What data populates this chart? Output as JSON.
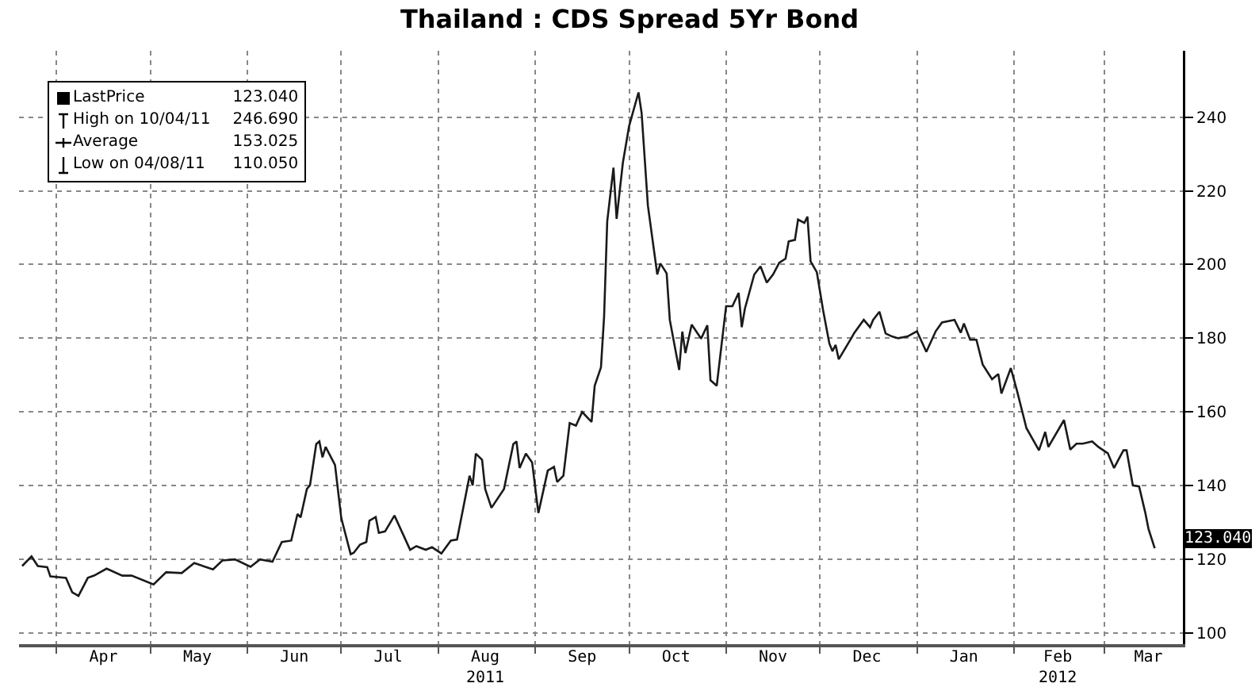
{
  "chart_data": {
    "type": "line",
    "title": "Thailand : CDS Spread 5Yr Bond",
    "x": [
      "2011-03-21",
      "2011-03-24",
      "2011-03-26",
      "2011-03-29",
      "2011-03-30",
      "2011-04-04",
      "2011-04-06",
      "2011-04-08",
      "2011-04-11",
      "2011-04-13",
      "2011-04-17",
      "2011-04-22",
      "2011-04-25",
      "2011-05-02",
      "2011-05-06",
      "2011-05-11",
      "2011-05-15",
      "2011-05-21",
      "2011-05-24",
      "2011-05-28",
      "2011-06-02",
      "2011-06-05",
      "2011-06-09",
      "2011-06-12",
      "2011-06-15",
      "2011-06-17",
      "2011-06-18",
      "2011-06-20",
      "2011-06-21",
      "2011-06-23",
      "2011-06-24",
      "2011-06-25",
      "2011-06-26",
      "2011-06-29",
      "2011-07-01",
      "2011-07-04",
      "2011-07-05",
      "2011-07-07",
      "2011-07-09",
      "2011-07-10",
      "2011-07-12",
      "2011-07-13",
      "2011-07-15",
      "2011-07-18",
      "2011-07-23",
      "2011-07-25",
      "2011-07-28",
      "2011-07-30",
      "2011-08-02",
      "2011-08-05",
      "2011-08-07",
      "2011-08-09",
      "2011-08-11",
      "2011-08-12",
      "2011-08-13",
      "2011-08-15",
      "2011-08-16",
      "2011-08-18",
      "2011-08-22",
      "2011-08-25",
      "2011-08-26",
      "2011-08-27",
      "2011-08-29",
      "2011-08-31",
      "2011-09-02",
      "2011-09-05",
      "2011-09-07",
      "2011-09-08",
      "2011-09-10",
      "2011-09-12",
      "2011-09-14",
      "2011-09-16",
      "2011-09-19",
      "2011-09-20",
      "2011-09-22",
      "2011-09-23",
      "2011-09-24",
      "2011-09-26",
      "2011-09-27",
      "2011-09-29",
      "2011-10-01",
      "2011-10-04",
      "2011-10-05",
      "2011-10-07",
      "2011-10-10",
      "2011-10-11",
      "2011-10-13",
      "2011-10-14",
      "2011-10-17",
      "2011-10-18",
      "2011-10-19",
      "2011-10-21",
      "2011-10-24",
      "2011-10-26",
      "2011-10-27",
      "2011-10-29",
      "2011-11-01",
      "2011-11-03",
      "2011-11-05",
      "2011-11-06",
      "2011-11-07",
      "2011-11-10",
      "2011-11-12",
      "2011-11-14",
      "2011-11-16",
      "2011-11-18",
      "2011-11-20",
      "2011-11-21",
      "2011-11-23",
      "2011-11-24",
      "2011-11-26",
      "2011-11-27",
      "2011-11-28",
      "2011-11-30",
      "2011-12-02",
      "2011-12-04",
      "2011-12-05",
      "2011-12-06",
      "2011-12-07",
      "2011-12-11",
      "2011-12-12",
      "2011-12-15",
      "2011-12-17",
      "2011-12-18",
      "2011-12-20",
      "2011-12-22",
      "2011-12-24",
      "2011-12-26",
      "2011-12-29",
      "2012-01-01",
      "2012-01-04",
      "2012-01-07",
      "2012-01-09",
      "2012-01-13",
      "2012-01-15",
      "2012-01-16",
      "2012-01-18",
      "2012-01-20",
      "2012-01-22",
      "2012-01-25",
      "2012-01-27",
      "2012-01-28",
      "2012-01-31",
      "2012-02-02",
      "2012-02-05",
      "2012-02-09",
      "2012-02-11",
      "2012-02-12",
      "2012-02-17",
      "2012-02-19",
      "2012-02-21",
      "2012-02-23",
      "2012-02-26",
      "2012-02-28",
      "2012-03-02",
      "2012-03-04",
      "2012-03-07",
      "2012-03-08",
      "2012-03-10",
      "2012-03-12",
      "2012-03-14",
      "2012-03-15",
      "2012-03-17"
    ],
    "series": [
      {
        "color": "#1a1a1a",
        "values": [
          118.2,
          120.8,
          118.2,
          117.9,
          115.4,
          115,
          111.1,
          110.1,
          115,
          115.6,
          117.5,
          115.6,
          115.6,
          113.2,
          116.5,
          116.3,
          119,
          117.3,
          119.7,
          120,
          118,
          120,
          119.4,
          124.7,
          125.1,
          132.3,
          131.4,
          139.1,
          140.1,
          151.3,
          152,
          147.7,
          150.5,
          145.6,
          131.2,
          121.4,
          121.8,
          124,
          124.7,
          130.5,
          131.5,
          127.2,
          127.6,
          131.9,
          122.6,
          123.6,
          122.6,
          123.3,
          121.6,
          125.1,
          125.4,
          134,
          142.7,
          140.1,
          148.7,
          147,
          139.1,
          134,
          139.1,
          151.3,
          152,
          144.8,
          148.7,
          146.3,
          132.6,
          144.1,
          145.1,
          141,
          142.7,
          157,
          156.3,
          160,
          157.3,
          167.1,
          172.1,
          185.8,
          211.7,
          226.3,
          212.4,
          227.6,
          237.6,
          246.7,
          241.1,
          216,
          197.3,
          200.3,
          197.6,
          185,
          171.4,
          181.8,
          176,
          183.7,
          179.9,
          183.5,
          168.6,
          167.1,
          188.7,
          188.7,
          192.3,
          183,
          188,
          197.3,
          199.5,
          195.1,
          197.3,
          200.5,
          201.6,
          206.3,
          206.7,
          212.2,
          211.3,
          213,
          200.9,
          197.9,
          187.6,
          178.6,
          176.5,
          178.2,
          174.3,
          180,
          181.5,
          185,
          183,
          185,
          187.2,
          181.3,
          180.5,
          180,
          180.5,
          181.9,
          176.3,
          181.9,
          184.3,
          185,
          181.5,
          184,
          179.6,
          179.6,
          172.9,
          168.9,
          170.3,
          165,
          171.9,
          165.7,
          155.6,
          149.6,
          154.6,
          150.5,
          157.8,
          149.8,
          151.4,
          151.4,
          152,
          150.5,
          148.8,
          144.8,
          149.6,
          149.6,
          140.1,
          139.8,
          132.6,
          128.3,
          123
        ]
      }
    ],
    "xlim": [
      "2011-03-20",
      "2012-03-26"
    ],
    "xticks": [
      {
        "value": "2011-04-01",
        "label": null
      },
      {
        "value": "2011-04-16",
        "label": "Apr"
      },
      {
        "value": "2011-05-01",
        "label": null
      },
      {
        "value": "2011-05-16",
        "label": "May"
      },
      {
        "value": "2011-06-01",
        "label": null
      },
      {
        "value": "2011-06-16",
        "label": "Jun"
      },
      {
        "value": "2011-07-01",
        "label": null
      },
      {
        "value": "2011-07-16",
        "label": "Jul"
      },
      {
        "value": "2011-08-01",
        "label": null
      },
      {
        "value": "2011-08-16",
        "label": "Aug\n2011"
      },
      {
        "value": "2011-09-01",
        "label": null
      },
      {
        "value": "2011-09-16",
        "label": "Sep"
      },
      {
        "value": "2011-10-01",
        "label": null
      },
      {
        "value": "2011-10-16",
        "label": "Oct"
      },
      {
        "value": "2011-11-01",
        "label": null
      },
      {
        "value": "2011-11-16",
        "label": "Nov"
      },
      {
        "value": "2011-12-01",
        "label": null
      },
      {
        "value": "2011-12-16",
        "label": "Dec"
      },
      {
        "value": "2012-01-01",
        "label": null
      },
      {
        "value": "2012-01-16",
        "label": "Jan"
      },
      {
        "value": "2012-02-01",
        "label": null
      },
      {
        "value": "2012-02-15",
        "label": "Feb\n2012"
      },
      {
        "value": "2012-03-01",
        "label": null
      },
      {
        "value": "2012-03-15",
        "label": "Mar"
      }
    ],
    "ylim": [
      97,
      258
    ],
    "yticks": [
      100,
      120,
      140,
      160,
      180,
      200,
      220,
      240
    ],
    "grid": true,
    "marker": "none",
    "line_style": "solid",
    "annotations": [
      "LastPrice 123.040",
      "High on 10/04/11 246.690",
      "Average 153.025",
      "Low on 04/08/11 110.050",
      "123.040"
    ]
  }
}
